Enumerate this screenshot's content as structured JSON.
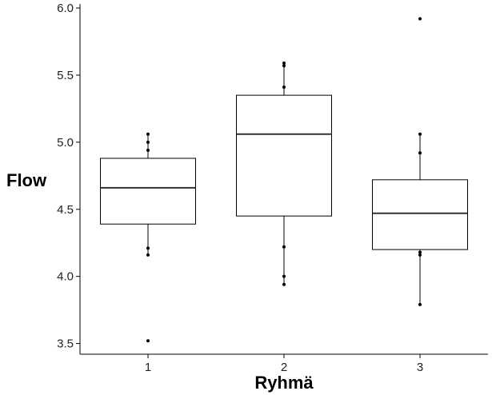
{
  "chart_data": {
    "type": "boxplot",
    "title": "",
    "xlabel": "Ryhmä",
    "ylabel": "Flow",
    "ylim": [
      3.42,
      6.03
    ],
    "yticks": [
      3.5,
      4.0,
      4.5,
      5.0,
      5.5,
      6.0
    ],
    "ytick_labels": [
      "3.5",
      "4.0",
      "4.5",
      "5.0",
      "5.5",
      "6.0"
    ],
    "grid": false,
    "legend": "none",
    "colors": {
      "box_fill": "#ffffff",
      "stroke": "#000000",
      "median": "#333333",
      "point": "#000000"
    },
    "groups": [
      {
        "category": "1",
        "whisker_low": 4.16,
        "q1": 4.39,
        "median": 4.66,
        "q3": 4.88,
        "whisker_high": 5.06,
        "points": [
          3.52,
          4.16,
          4.21,
          4.94,
          5.0,
          5.06
        ]
      },
      {
        "category": "2",
        "whisker_low": 3.94,
        "q1": 4.45,
        "median": 5.06,
        "q3": 5.35,
        "whisker_high": 5.59,
        "points": [
          3.94,
          4.0,
          4.22,
          5.41,
          5.57,
          5.59
        ]
      },
      {
        "category": "3",
        "whisker_low": 3.79,
        "q1": 4.2,
        "median": 4.47,
        "q3": 4.72,
        "whisker_high": 5.06,
        "points": [
          3.79,
          4.16,
          4.18,
          4.92,
          5.06,
          5.92
        ]
      }
    ]
  }
}
